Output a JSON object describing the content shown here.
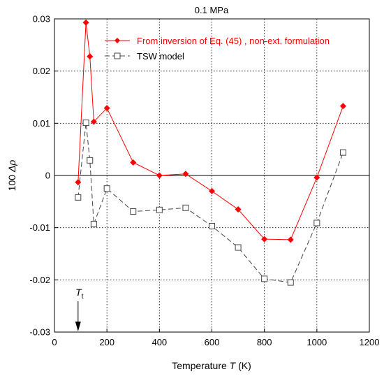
{
  "chart_data": {
    "type": "line",
    "title": "0.1 MPa",
    "xlabel": {
      "prefix": "Temperature ",
      "var": "T",
      "suffix": " (K)"
    },
    "ylabel": {
      "prefix": "100 ",
      "var": "Δρ"
    },
    "xlim": [
      0,
      1200
    ],
    "ylim": [
      -0.03,
      0.03
    ],
    "xticks": [
      0,
      200,
      400,
      600,
      800,
      1000,
      1200
    ],
    "yticks": [
      -0.03,
      -0.02,
      -0.01,
      0,
      0.01,
      0.02,
      0.03
    ],
    "xtick_labels": [
      "0",
      "200",
      "400",
      "600",
      "800",
      "1000",
      "1200"
    ],
    "ytick_labels": [
      "-0.03",
      "-0.02",
      "-0.01",
      "0",
      "0.01",
      "0.02",
      "0.03"
    ],
    "grid": true,
    "legend_position": "top-right",
    "series": [
      {
        "name": "From inversion of Eq. (45) , non-ext. formulation",
        "color": "#ff0000",
        "marker": "diamond-filled",
        "line": "solid",
        "x": [
          90,
          120,
          135,
          150,
          200,
          300,
          400,
          500,
          600,
          700,
          800,
          900,
          1000,
          1100
        ],
        "y": [
          -0.0013,
          0.0293,
          0.0228,
          0.0103,
          0.0129,
          0.0025,
          0.0,
          0.0003,
          -0.003,
          -0.0065,
          -0.0122,
          -0.0123,
          -0.0004,
          0.0133
        ]
      },
      {
        "name": "TSW model",
        "color": "#444444",
        "marker": "square-open",
        "line": "dashed",
        "x": [
          90,
          120,
          135,
          150,
          200,
          300,
          400,
          500,
          600,
          700,
          800,
          900,
          1000,
          1100
        ],
        "y": [
          -0.0042,
          0.0101,
          0.0029,
          -0.0093,
          -0.0025,
          -0.0069,
          -0.0066,
          -0.0062,
          -0.0097,
          -0.0138,
          -0.0198,
          -0.0205,
          -0.0091,
          0.0044
        ]
      }
    ],
    "annotations": [
      {
        "label_var": "T",
        "label_sub": "t",
        "x": 90,
        "arrow": "down"
      }
    ]
  }
}
